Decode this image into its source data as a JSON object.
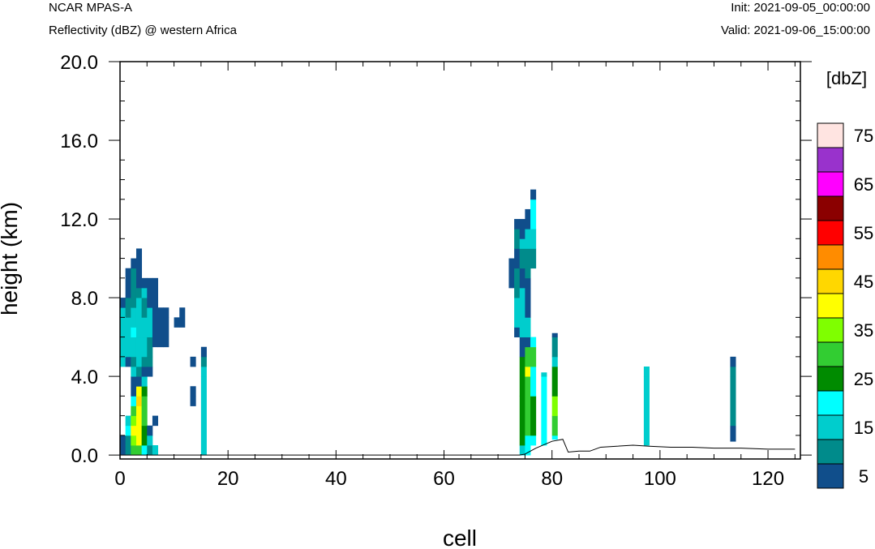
{
  "header": {
    "title_left": "NCAR MPAS-A",
    "subtitle_left": "Reflectivity (dBZ) @ western Africa",
    "init": "Init: 2021-09-05_00:00:00",
    "valid": "Valid: 2021-09-06_15:00:00"
  },
  "chart_data": {
    "type": "heatmap",
    "xlabel": "cell",
    "ylabel": "height (km)",
    "xlim": [
      0,
      126
    ],
    "ylim": [
      -0.2,
      20.0
    ],
    "x_ticks": [
      0,
      20,
      40,
      60,
      80,
      100,
      120
    ],
    "x_tick_labels": [
      "0",
      "20",
      "40",
      "60",
      "80",
      "100",
      "120"
    ],
    "y_ticks": [
      0,
      4,
      8,
      12,
      16,
      20
    ],
    "y_tick_labels": [
      "0.0",
      "4.0",
      "8.0",
      "12.0",
      "16.0",
      "20.0"
    ],
    "colorbar": {
      "title": "[dbZ]",
      "levels": [
        5,
        10,
        15,
        20,
        25,
        30,
        35,
        40,
        45,
        50,
        55,
        60,
        65,
        70,
        75
      ],
      "tick_labels": [
        "5",
        "15",
        "25",
        "35",
        "45",
        "55",
        "65",
        "75"
      ],
      "colors": [
        "#104E8B",
        "#008B8B",
        "#00CDCD",
        "#00FFFF",
        "#008B00",
        "#32CD32",
        "#7FFF00",
        "#FFFF00",
        "#FFD700",
        "#FF8C00",
        "#FF0000",
        "#8B0000",
        "#FF00FF",
        "#9932CC",
        "#FFE4E1"
      ]
    },
    "terrain": [
      [
        0,
        0
      ],
      [
        74,
        0
      ],
      [
        75,
        0.05
      ],
      [
        77,
        0.35
      ],
      [
        80,
        0.7
      ],
      [
        82,
        0.8
      ],
      [
        83,
        0.15
      ],
      [
        85,
        0.2
      ],
      [
        87,
        0.2
      ],
      [
        89,
        0.4
      ],
      [
        92,
        0.45
      ],
      [
        95,
        0.5
      ],
      [
        98,
        0.45
      ],
      [
        102,
        0.4
      ],
      [
        106,
        0.4
      ],
      [
        110,
        0.35
      ],
      [
        115,
        0.35
      ],
      [
        120,
        0.3
      ],
      [
        125,
        0.3
      ]
    ],
    "columns": [
      {
        "x": 0.5,
        "cells": [
          [
            0,
            0.5,
            5
          ],
          [
            0.5,
            1,
            5
          ],
          [
            4.5,
            7.5,
            15
          ],
          [
            7.5,
            8,
            5
          ]
        ]
      },
      {
        "x": 1.5,
        "cells": [
          [
            0,
            0.5,
            10
          ],
          [
            0.5,
            1,
            10
          ],
          [
            1,
            1.5,
            20
          ],
          [
            1.5,
            2,
            15
          ],
          [
            4.5,
            5,
            5
          ],
          [
            5,
            7,
            15
          ],
          [
            7,
            8,
            10
          ],
          [
            8,
            9.5,
            5
          ]
        ]
      },
      {
        "x": 2.5,
        "cells": [
          [
            0,
            0.5,
            30
          ],
          [
            0.5,
            1,
            35
          ],
          [
            1,
            1.5,
            40
          ],
          [
            1.5,
            2,
            35
          ],
          [
            2,
            2.5,
            30
          ],
          [
            2.5,
            3,
            20
          ],
          [
            3,
            4,
            5
          ],
          [
            4,
            4.5,
            15
          ],
          [
            4.5,
            5,
            10
          ],
          [
            5,
            6,
            15
          ],
          [
            6,
            6.5,
            20
          ],
          [
            6.5,
            7.5,
            15
          ],
          [
            7.5,
            8.5,
            10
          ],
          [
            8.5,
            9.5,
            10
          ],
          [
            9.5,
            10,
            5
          ]
        ]
      },
      {
        "x": 3.5,
        "cells": [
          [
            0,
            0.5,
            30
          ],
          [
            0.5,
            2.5,
            40
          ],
          [
            2.5,
            3,
            45
          ],
          [
            3,
            3.5,
            40
          ],
          [
            3.5,
            4,
            5
          ],
          [
            4,
            4.5,
            10
          ],
          [
            4.5,
            6,
            15
          ],
          [
            6,
            7,
            15
          ],
          [
            7,
            8,
            15
          ],
          [
            8,
            8.5,
            10
          ],
          [
            8.5,
            9,
            5
          ],
          [
            9,
            10.5,
            5
          ]
        ]
      },
      {
        "x": 4.5,
        "cells": [
          [
            0,
            0.5,
            20
          ],
          [
            0.5,
            1.5,
            25
          ],
          [
            1.5,
            3,
            30
          ],
          [
            3,
            3.5,
            25
          ],
          [
            3.5,
            4,
            15
          ],
          [
            4,
            4.5,
            5
          ],
          [
            4.5,
            5,
            10
          ],
          [
            5,
            6,
            15
          ],
          [
            6,
            7,
            15
          ],
          [
            7,
            8,
            10
          ],
          [
            8,
            8.5,
            15
          ],
          [
            8.5,
            9,
            5
          ]
        ]
      },
      {
        "x": 5.5,
        "cells": [
          [
            0,
            0.5,
            10
          ],
          [
            0.5,
            1,
            15
          ],
          [
            1,
            1.5,
            5
          ],
          [
            4,
            4.5,
            5
          ],
          [
            4.5,
            5,
            10
          ],
          [
            5,
            6,
            10
          ],
          [
            6,
            7.5,
            15
          ],
          [
            7.5,
            9,
            5
          ]
        ]
      },
      {
        "x": 6.5,
        "cells": [
          [
            0,
            0.5,
            15
          ],
          [
            1.5,
            2,
            5
          ],
          [
            5.5,
            6,
            5
          ],
          [
            6,
            8,
            5
          ],
          [
            8,
            9,
            5
          ]
        ]
      },
      {
        "x": 7.5,
        "cells": [
          [
            5.5,
            7,
            5
          ],
          [
            7,
            7.5,
            5
          ]
        ]
      },
      {
        "x": 8.5,
        "cells": [
          [
            5.5,
            7,
            5
          ],
          [
            7,
            7.5,
            5
          ]
        ]
      },
      {
        "x": 10.5,
        "cells": [
          [
            6.5,
            7,
            5
          ]
        ]
      },
      {
        "x": 11.5,
        "cells": [
          [
            6.5,
            7.5,
            5
          ]
        ]
      },
      {
        "x": 13.5,
        "cells": [
          [
            2.5,
            3,
            5
          ],
          [
            3,
            3.5,
            5
          ],
          [
            4.5,
            5,
            5
          ]
        ]
      },
      {
        "x": 15.5,
        "cells": [
          [
            0,
            4,
            15
          ],
          [
            4,
            4.5,
            15
          ],
          [
            4.5,
            5,
            10
          ],
          [
            5,
            5.5,
            5
          ]
        ]
      },
      {
        "x": 72.5,
        "cells": [
          [
            8.5,
            10,
            5
          ]
        ]
      },
      {
        "x": 73.5,
        "cells": [
          [
            6,
            6.5,
            5
          ],
          [
            6.5,
            8,
            15
          ],
          [
            8,
            9.5,
            10
          ],
          [
            9.5,
            10.5,
            5
          ],
          [
            10.5,
            11.5,
            10
          ],
          [
            11.5,
            12,
            5
          ]
        ]
      },
      {
        "x": 74.5,
        "cells": [
          [
            0,
            0.5,
            15
          ],
          [
            0.5,
            3,
            25
          ],
          [
            3,
            5,
            25
          ],
          [
            5,
            6,
            5
          ],
          [
            6,
            7,
            15
          ],
          [
            7,
            8.5,
            15
          ],
          [
            8.5,
            9.5,
            5
          ],
          [
            9.5,
            10.5,
            10
          ],
          [
            10.5,
            11,
            15
          ],
          [
            11,
            12,
            5
          ]
        ]
      },
      {
        "x": 75.5,
        "cells": [
          [
            0,
            1,
            20
          ],
          [
            1,
            3,
            30
          ],
          [
            3,
            4,
            30
          ],
          [
            4,
            4.5,
            40
          ],
          [
            4.5,
            5.5,
            30
          ],
          [
            5.5,
            6,
            5
          ],
          [
            6,
            7,
            15
          ],
          [
            7,
            8.5,
            5
          ],
          [
            8.5,
            9,
            5
          ],
          [
            9,
            10.5,
            10
          ],
          [
            10.5,
            11.5,
            15
          ],
          [
            11.5,
            12.5,
            5
          ]
        ]
      },
      {
        "x": 76.5,
        "cells": [
          [
            0.5,
            1,
            20
          ],
          [
            1,
            3,
            25
          ],
          [
            3,
            4.5,
            20
          ],
          [
            4.5,
            5.5,
            30
          ],
          [
            5.5,
            6,
            20
          ],
          [
            9.5,
            10.5,
            10
          ],
          [
            10.5,
            11.5,
            15
          ],
          [
            11.5,
            13,
            20
          ],
          [
            13,
            13.5,
            5
          ]
        ]
      },
      {
        "x": 78.5,
        "cells": [
          [
            0.5,
            4,
            20
          ],
          [
            4,
            4.2,
            15
          ]
        ]
      },
      {
        "x": 80.5,
        "cells": [
          [
            0.8,
            1,
            20
          ],
          [
            1,
            2,
            30
          ],
          [
            2,
            3,
            35
          ],
          [
            3,
            4.5,
            25
          ],
          [
            4.5,
            5,
            15
          ],
          [
            5,
            6,
            10
          ],
          [
            6,
            6.2,
            5
          ]
        ]
      },
      {
        "x": 97.5,
        "cells": [
          [
            0.5,
            4,
            15
          ],
          [
            4,
            4.5,
            15
          ]
        ]
      },
      {
        "x": 113.5,
        "cells": [
          [
            0.7,
            1.5,
            5
          ],
          [
            1.5,
            4,
            10
          ],
          [
            4,
            4.5,
            10
          ],
          [
            4.5,
            5,
            5
          ]
        ]
      }
    ]
  }
}
